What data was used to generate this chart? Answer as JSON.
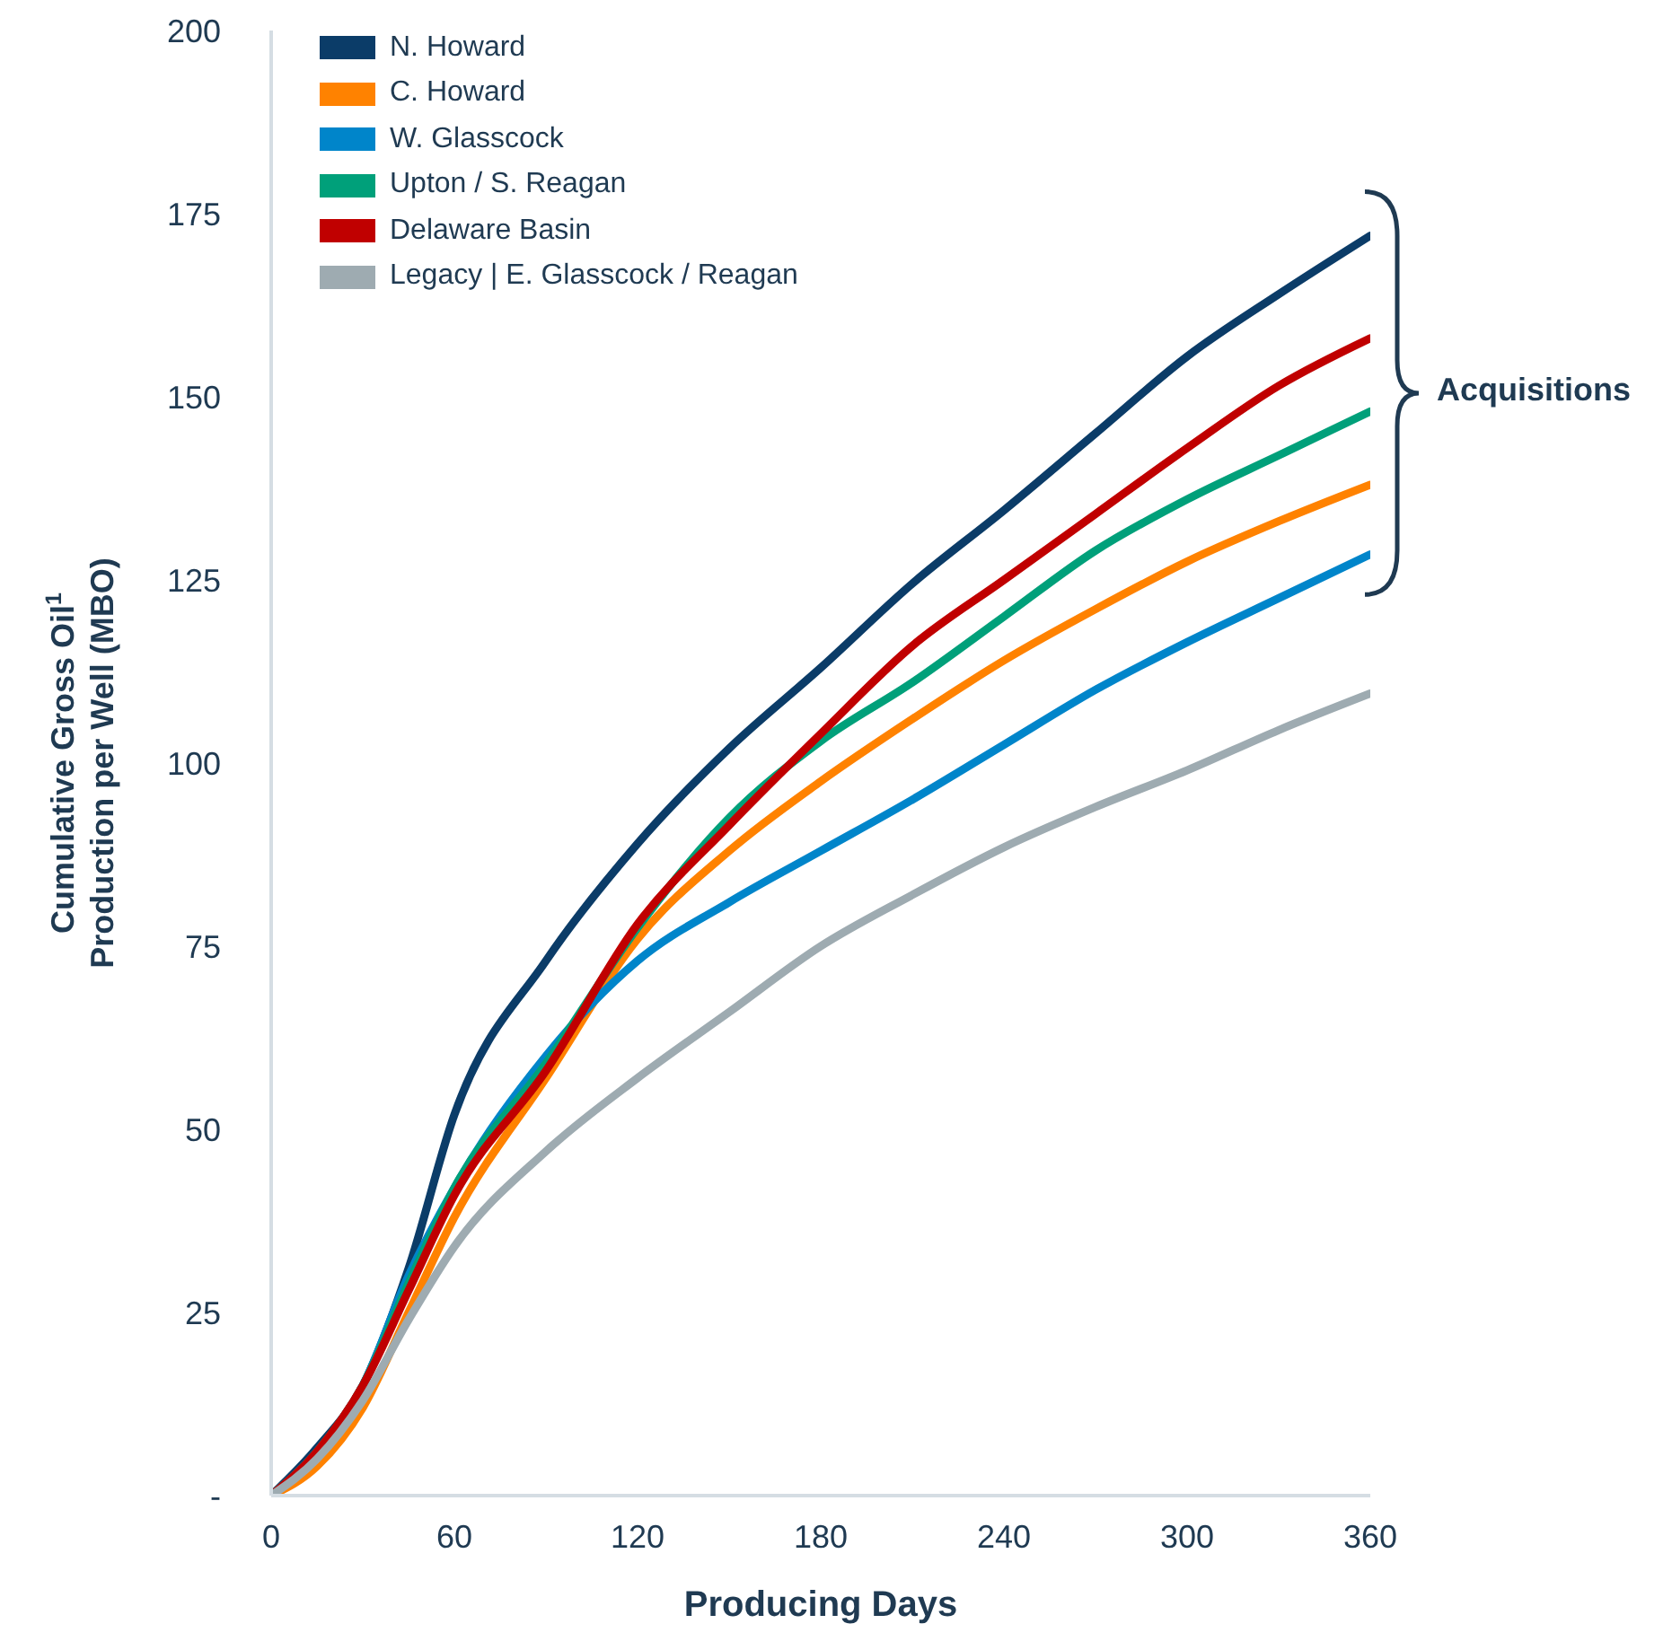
{
  "chart_data": {
    "type": "line",
    "xlabel": "Producing Days",
    "ylabel": "Cumulative Gross Oil$^{1}$ Production per Well (MBO)",
    "x": [
      0,
      15,
      30,
      45,
      60,
      90,
      120,
      150,
      180,
      210,
      240,
      270,
      300,
      330,
      360
    ],
    "xlim": [
      0,
      360
    ],
    "xticks": [
      0,
      60,
      120,
      180,
      240,
      300,
      360
    ],
    "ylim": [
      0,
      200
    ],
    "yticks": [
      {
        "value": 0,
        "label": "-"
      },
      25,
      50,
      75,
      100,
      125,
      150,
      175,
      200
    ],
    "grid": false,
    "legend": "top left",
    "marker": "none",
    "line_style": "solid",
    "annotations": [
      "Acquisitions"
    ],
    "series": [
      {
        "name": "N. Howard",
        "color": "#0b3c68",
        "values": [
          0,
          6.5,
          15,
          31,
          52,
          73,
          89,
          102,
          113,
          124.5,
          134.5,
          145,
          155.5,
          164,
          172
        ]
      },
      {
        "name": "C. Howard",
        "color": "#ff8200",
        "values": [
          0,
          4,
          12,
          25,
          38,
          57,
          76,
          88,
          97.5,
          106,
          114,
          121,
          127.5,
          133,
          138
        ]
      },
      {
        "name": "W. Glasscock",
        "color": "#0085ca",
        "values": [
          0,
          6,
          15,
          30,
          42,
          60,
          73,
          81,
          88,
          95,
          102.5,
          110,
          116.5,
          122.5,
          128.5
        ]
      },
      {
        "name": "Upton / S. Reagan",
        "color": "#00a07a",
        "values": [
          0,
          6,
          15,
          29,
          42,
          59,
          77.5,
          92.5,
          103,
          111,
          120,
          129,
          136,
          142,
          148
        ]
      },
      {
        "name": "Delaware Basin",
        "color": "#c00000",
        "values": [
          0,
          6,
          15,
          28,
          41,
          58,
          78,
          91.5,
          104,
          116,
          125,
          134,
          143,
          151.5,
          158
        ]
      },
      {
        "name": "Legacy | E. Glasscock / Reagan",
        "color": "#9eabb1",
        "values": [
          0,
          5,
          13,
          24,
          34,
          47,
          57,
          66,
          75,
          82,
          88.5,
          94,
          99,
          104.5,
          109.5
        ]
      }
    ]
  }
}
